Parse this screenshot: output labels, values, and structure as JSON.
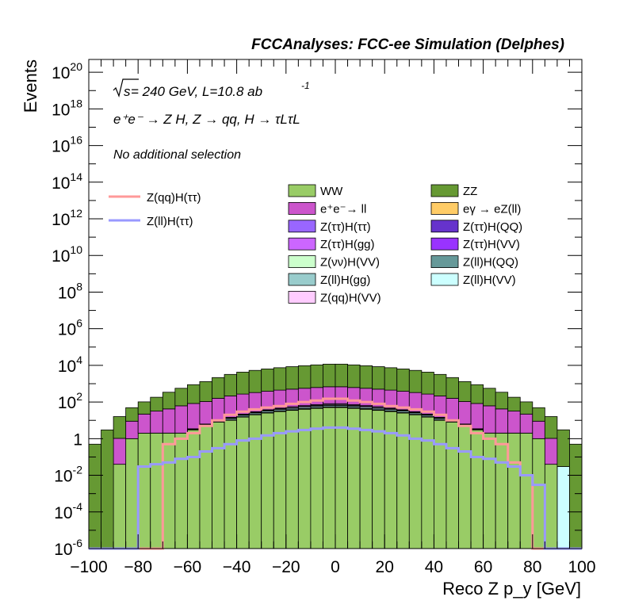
{
  "chart_data": {
    "type": "bar",
    "stacked": true,
    "title": "FCCAnalyses: FCC-ee Simulation (Delphes)",
    "xlabel": "Reco Z p_y [GeV]",
    "ylabel": "Events",
    "xlim": [
      -100,
      100
    ],
    "ylim": [
      1e-06,
      5e+20
    ],
    "yscale": "log",
    "x_ticks": [
      "−100",
      "−80",
      "−60",
      "−40",
      "−20",
      "0",
      "20",
      "40",
      "60",
      "80",
      "100"
    ],
    "y_ticks": [
      {
        "base": "10",
        "exp": "20"
      },
      {
        "base": "10",
        "exp": "18"
      },
      {
        "base": "10",
        "exp": "16"
      },
      {
        "base": "10",
        "exp": "14"
      },
      {
        "base": "10",
        "exp": "12"
      },
      {
        "base": "10",
        "exp": "10"
      },
      {
        "base": "10",
        "exp": "8"
      },
      {
        "base": "10",
        "exp": "6"
      },
      {
        "base": "10",
        "exp": "4"
      },
      {
        "base": "10",
        "exp": "2"
      },
      {
        "base": "1",
        "exp": ""
      },
      {
        "base": "10",
        "exp": "-2"
      },
      {
        "base": "10",
        "exp": "-4"
      },
      {
        "base": "10",
        "exp": "-6"
      }
    ],
    "annotations": {
      "energy_prefix": "s",
      "energy_text": " = 240 GeV, L=10.8 ab",
      "lumi_exp": "-1",
      "process": "e⁺e⁻ → Z H, Z → qq, H → τLτL",
      "selection": "No additional selection"
    },
    "bin_edges": [
      -100,
      -95,
      -90,
      -85,
      -80,
      -75,
      -70,
      -65,
      -60,
      -55,
      -50,
      -45,
      -40,
      -35,
      -30,
      -25,
      -20,
      -15,
      -10,
      -5,
      0,
      5,
      10,
      15,
      20,
      25,
      30,
      35,
      40,
      45,
      50,
      55,
      60,
      65,
      70,
      75,
      80,
      85,
      90,
      95,
      100
    ],
    "stack_order_bottom_to_top": [
      "Z(ll)H(VV)",
      "WW",
      "Z(ττ)H(ττ)",
      "Z(νν)H(VV)",
      "Z(ll)H(QQ)",
      "Z(ττ)H(VV)",
      "Z(ττ)H(QQ)",
      "eγ → eZ(ll)",
      "Z(ll)H(gg)",
      "Z(qq)H(VV)",
      "Z(ττ)H(gg)",
      "e⁺e⁻→ ll",
      "ZZ"
    ],
    "stacked_series": [
      {
        "name": "Z(ll)H(VV)",
        "color": "#ccffff",
        "values": [
          0,
          0,
          0,
          0,
          0,
          0,
          0,
          0,
          0,
          0,
          0,
          0,
          0,
          0,
          0,
          0,
          0,
          0,
          0,
          0,
          0,
          0,
          0,
          0,
          0,
          0,
          0,
          0,
          0,
          0,
          0,
          0,
          0,
          0,
          0,
          0,
          0,
          0,
          0.03,
          0
        ]
      },
      {
        "name": "WW",
        "color": "#99cc66",
        "values": [
          0,
          0,
          0.04,
          1,
          2,
          2,
          2,
          2,
          3,
          5,
          8,
          10,
          15,
          20,
          25,
          30,
          35,
          40,
          45,
          50,
          50,
          45,
          40,
          35,
          30,
          25,
          20,
          15,
          10,
          8,
          5,
          3,
          2,
          2,
          2,
          2,
          1,
          0.04,
          0,
          0
        ]
      },
      {
        "name": "Z(ττ)H(ττ)",
        "color": "#9966ff",
        "values": [
          0,
          0,
          0,
          0,
          0.0001,
          0.003,
          0.006,
          0.006,
          0.005,
          0.008,
          0.01,
          0.015,
          0.02,
          0.03,
          0.04,
          0.05,
          0.06,
          0.07,
          0.08,
          0.09,
          0.1,
          0.09,
          0.08,
          0.07,
          0.06,
          0.05,
          0.04,
          0.03,
          0.02,
          0.015,
          0.01,
          0.008,
          0.005,
          0.006,
          0.006,
          0.003,
          0.0001,
          0,
          0,
          0
        ]
      },
      {
        "name": "Z(νν)H(VV)",
        "color": "#ccffcc",
        "values": [
          0,
          0,
          0,
          0,
          0,
          0.01,
          0.01,
          0.01,
          0.02,
          0.03,
          0.05,
          0.08,
          0.1,
          0.15,
          0.2,
          0.3,
          0.4,
          0.5,
          0.6,
          0.7,
          0.8,
          0.7,
          0.6,
          0.5,
          0.4,
          0.3,
          0.2,
          0.15,
          0.1,
          0.08,
          0.05,
          0.03,
          0.02,
          0.01,
          0.01,
          0.01,
          0,
          0,
          0,
          0
        ]
      },
      {
        "name": "Z(ll)H(QQ)",
        "color": "#669999",
        "values": [
          0,
          0,
          0,
          0,
          0,
          0,
          0,
          0,
          0.01,
          0.02,
          0.03,
          0.05,
          0.08,
          0.1,
          0.15,
          0.2,
          0.25,
          0.3,
          0.35,
          0.4,
          0.4,
          0.35,
          0.3,
          0.25,
          0.2,
          0.15,
          0.1,
          0.08,
          0.05,
          0.03,
          0.02,
          0.01,
          0,
          0,
          0,
          0,
          0,
          0,
          0,
          0
        ]
      },
      {
        "name": "Z(ττ)H(VV)",
        "color": "#9933ff",
        "values": [
          0,
          0,
          0,
          0,
          0,
          0,
          0,
          0,
          0.01,
          0.02,
          0.03,
          0.04,
          0.06,
          0.08,
          0.1,
          0.12,
          0.15,
          0.18,
          0.2,
          0.22,
          0.22,
          0.2,
          0.18,
          0.15,
          0.12,
          0.1,
          0.08,
          0.06,
          0.04,
          0.03,
          0.02,
          0.01,
          0,
          0,
          0,
          0,
          0,
          0,
          0,
          0
        ]
      },
      {
        "name": "Z(ττ)H(QQ)",
        "color": "#6633cc",
        "values": [
          0,
          0,
          0,
          0,
          0,
          0,
          0,
          0,
          0.01,
          0.02,
          0.03,
          0.04,
          0.06,
          0.08,
          0.1,
          0.12,
          0.15,
          0.18,
          0.2,
          0.22,
          0.22,
          0.2,
          0.18,
          0.15,
          0.12,
          0.1,
          0.08,
          0.06,
          0.04,
          0.03,
          0.02,
          0.01,
          0,
          0,
          0,
          0,
          0,
          0,
          0,
          0
        ]
      },
      {
        "name": "eγ → eZ(ll)",
        "color": "#ffcc66",
        "values": [
          0,
          0,
          0,
          0,
          0.001,
          0.004,
          0.004,
          0.004,
          0.004,
          0.1,
          0.2,
          0.3,
          0.5,
          0.8,
          1,
          1.5,
          2,
          2.5,
          3,
          3.5,
          3.5,
          3,
          2.5,
          2,
          1.5,
          1,
          0.8,
          0.5,
          0.3,
          0.2,
          0.1,
          0.004,
          0.004,
          0.004,
          0.004,
          0.001,
          0,
          0,
          0,
          0
        ]
      },
      {
        "name": "Z(ll)H(gg)",
        "color": "#99cccc",
        "values": [
          0,
          0,
          0,
          0,
          0,
          0,
          0,
          0,
          0.2,
          0.5,
          1,
          2,
          3,
          4,
          5,
          6,
          7,
          8,
          9,
          10,
          10,
          9,
          8,
          7,
          6,
          5,
          4,
          3,
          2,
          1,
          0.5,
          0.2,
          0,
          0,
          0,
          0,
          0,
          0,
          0,
          0
        ]
      },
      {
        "name": "Z(qq)H(VV)",
        "color": "#ffccff",
        "values": [
          0,
          0,
          0,
          0,
          0,
          0,
          0,
          0,
          0.1,
          0.3,
          0.5,
          1,
          1.5,
          2,
          3,
          4,
          5,
          6,
          7,
          8,
          8,
          7,
          6,
          5,
          4,
          3,
          2,
          1.5,
          1,
          0.5,
          0.3,
          0.1,
          0,
          0,
          0,
          0,
          0,
          0,
          0,
          0
        ]
      },
      {
        "name": "Z(ττ)H(gg)",
        "color": "#cc66ff",
        "values": [
          0,
          0,
          0,
          0,
          0,
          0,
          0,
          0,
          0.1,
          0.3,
          0.5,
          1,
          1.5,
          2,
          3,
          4,
          5,
          6,
          7,
          8,
          8,
          7,
          6,
          5,
          4,
          3,
          2,
          1.5,
          1,
          0.5,
          0.3,
          0.1,
          0,
          0,
          0,
          0,
          0,
          0,
          0,
          0
        ]
      },
      {
        "name": "e⁺e⁻→ ll",
        "color": "#cc55cc",
        "values": [
          0,
          0,
          1,
          8,
          20,
          30,
          40,
          60,
          80,
          100,
          150,
          200,
          250,
          300,
          350,
          400,
          450,
          500,
          550,
          600,
          600,
          550,
          500,
          450,
          400,
          350,
          300,
          250,
          200,
          150,
          100,
          80,
          60,
          40,
          30,
          20,
          8,
          1,
          0,
          0
        ]
      },
      {
        "name": "ZZ",
        "color": "#669933",
        "values": [
          0.5,
          3,
          15,
          40,
          80,
          150,
          300,
          500,
          800,
          1200,
          2000,
          3000,
          4000,
          5000,
          6000,
          7000,
          8000,
          9000,
          10000,
          11000,
          11000,
          10000,
          9000,
          8000,
          7000,
          6000,
          5000,
          4000,
          3000,
          2000,
          1200,
          800,
          500,
          300,
          150,
          80,
          40,
          15,
          3,
          0.5
        ]
      }
    ],
    "signal_series": [
      {
        "name": "Z(qq)H(ττ)",
        "color": "#ff9999",
        "values": [
          0,
          0,
          0,
          0,
          0,
          0,
          0.5,
          1,
          2,
          5,
          10,
          20,
          30,
          40,
          50,
          60,
          80,
          100,
          120,
          150,
          150,
          120,
          100,
          80,
          60,
          50,
          40,
          30,
          20,
          10,
          5,
          2,
          1,
          0.5,
          0.05,
          0.01,
          0,
          0,
          0,
          0
        ]
      },
      {
        "name": "Z(ll)H(ττ)",
        "color": "#9999ff",
        "values": [
          0,
          0,
          0,
          0,
          0.03,
          0.04,
          0.05,
          0.08,
          0.1,
          0.2,
          0.3,
          0.5,
          0.8,
          1,
          1.5,
          2,
          2.5,
          3,
          3.5,
          4,
          4,
          3.5,
          3,
          2.5,
          2,
          1.5,
          1,
          0.8,
          0.5,
          0.3,
          0.2,
          0.1,
          0.08,
          0.05,
          0.03,
          0.01,
          0.003,
          0,
          0,
          0
        ]
      }
    ],
    "legend": {
      "signal_entries": [
        "Z(qq)H(ττ)",
        "Z(ll)H(ττ)"
      ],
      "background_entries": [
        "WW",
        "ZZ",
        "e⁺e⁻→ ll",
        "eγ → eZ(ll)",
        "Z(ττ)H(ττ)",
        "Z(ττ)H(QQ)",
        "Z(ττ)H(gg)",
        "Z(ττ)H(VV)",
        "Z(νν)H(VV)",
        "Z(ll)H(QQ)",
        "Z(ll)H(gg)",
        "Z(ll)H(VV)",
        "Z(qq)H(VV)"
      ],
      "placement": "top-center"
    },
    "grid": false
  }
}
